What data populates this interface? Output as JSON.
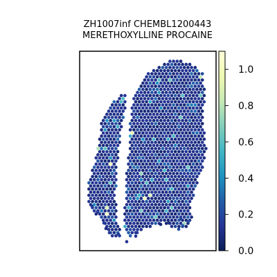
{
  "chart_data": {
    "type": "scatter",
    "title_lines": [
      "ZH1007inf CHEMBL1200443",
      "MERETHOXYLLINE PROCAINE"
    ],
    "xlabel": "",
    "ylabel": "",
    "colorbar": {
      "colormap": "YlGnBu",
      "range": [
        0.0,
        1.1
      ],
      "ticks": [
        {
          "value": 0.0,
          "label": "0.0"
        },
        {
          "value": 0.2,
          "label": "0.2"
        },
        {
          "value": 0.4,
          "label": "0.4"
        },
        {
          "value": 0.6,
          "label": "0.6"
        },
        {
          "value": 0.8,
          "label": "0.8"
        },
        {
          "value": 1.0,
          "label": "1.0"
        }
      ]
    },
    "grid": false,
    "axes_ticks_visible": false,
    "tissue_layout": "two spatial lobes of hexagonal spots: a narrow left strip and a larger right region",
    "spot_values_summary": "most spots near 0.1 (dark blue), scattered spots 0.3–0.7 (teal/cyan), a few high spots up to ~1.0 (pale yellow)"
  }
}
